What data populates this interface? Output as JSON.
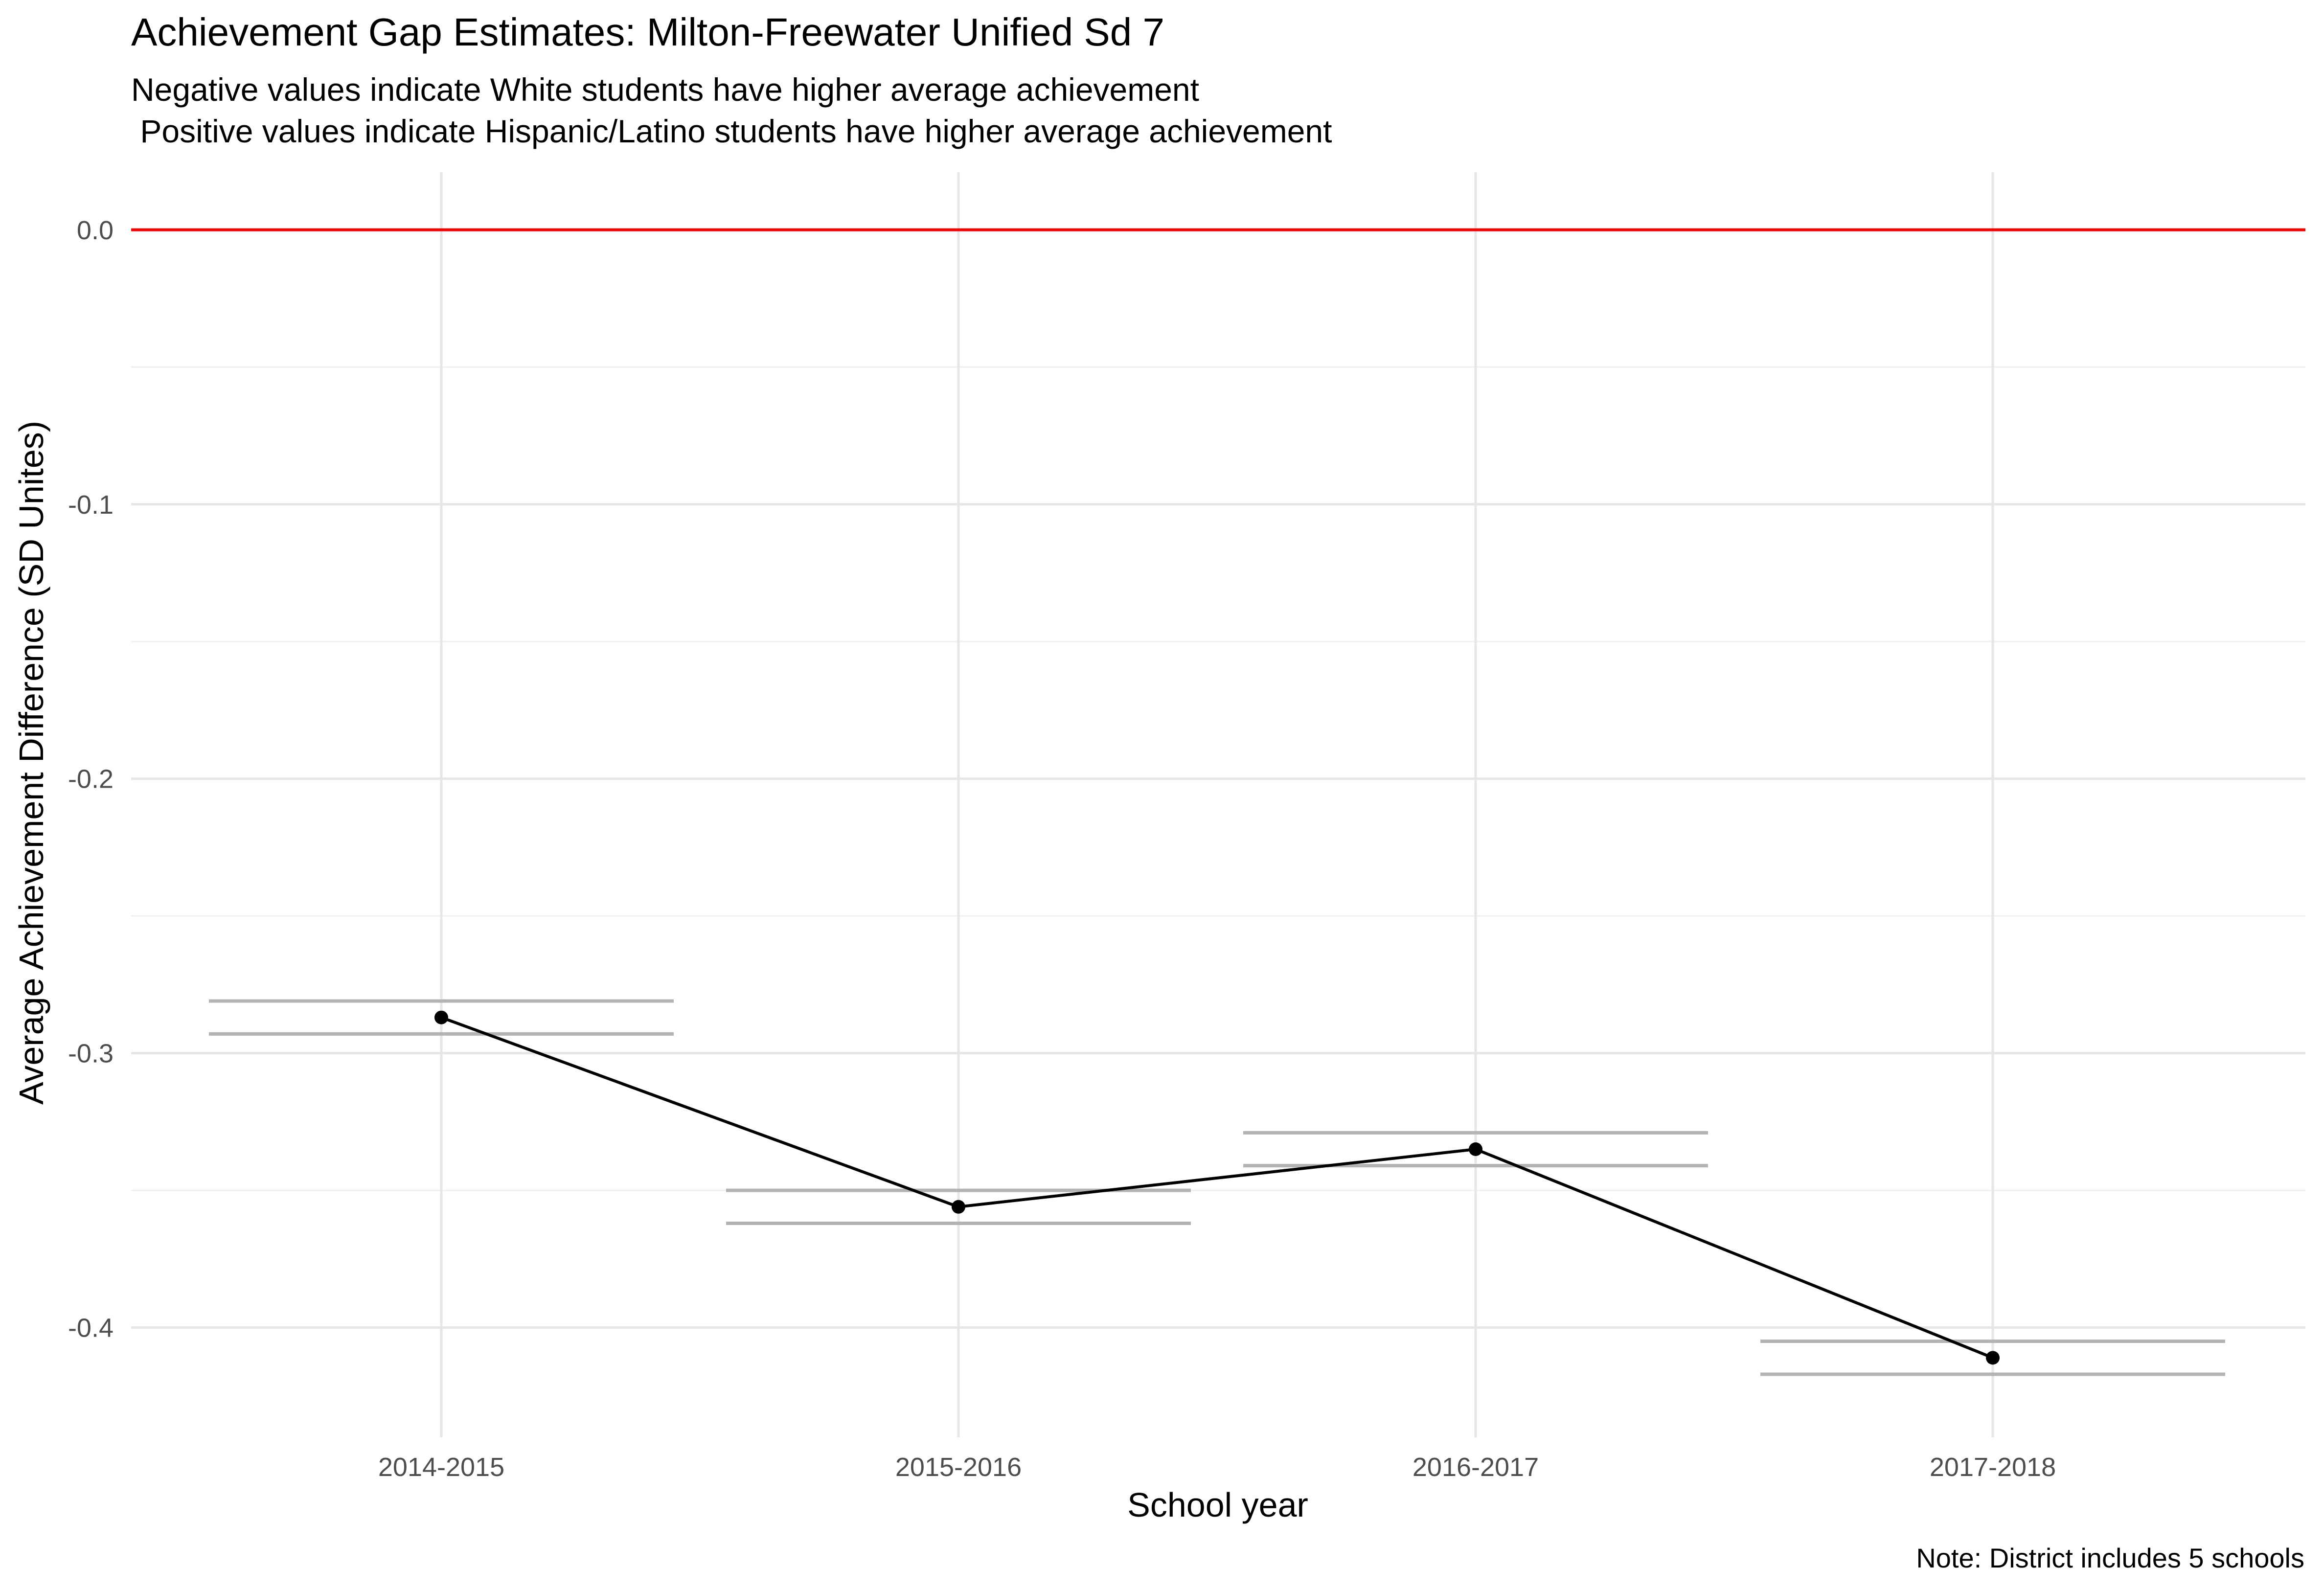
{
  "chart_data": {
    "type": "line",
    "title": "Achievement Gap Estimates: Milton-Freewater Unified Sd 7",
    "subtitle": [
      "Negative values indicate White students have higher average achievement",
      " Positive values indicate Hispanic/Latino students have higher average achievement"
    ],
    "xlabel": "School year",
    "ylabel": "Average Achievement Difference (SD Unites)",
    "caption": "Note: District includes 5 schools",
    "categories": [
      "2014-2015",
      "2015-2016",
      "2016-2017",
      "2017-2018"
    ],
    "values": [
      -0.287,
      -0.356,
      -0.335,
      -0.411
    ],
    "interval_upper": [
      -0.281,
      -0.35,
      -0.329,
      -0.405
    ],
    "interval_lower": [
      -0.293,
      -0.362,
      -0.341,
      -0.417
    ],
    "yticks": [
      0.0,
      -0.1,
      -0.2,
      -0.3,
      -0.4
    ],
    "ytick_labels": [
      "0.0",
      "-0.1",
      "-0.2",
      "-0.3",
      "-0.4"
    ],
    "ylim": [
      -0.44,
      0.021
    ],
    "reference_line": 0.0,
    "grid": true,
    "colors": {
      "line": "#000000",
      "reference": "#ff0000",
      "interval": "#b3b3b3",
      "grid_major": "#e6e6e6",
      "grid_minor": "#f0f0f0",
      "text": "#000000",
      "tick_text": "#4d4d4d"
    }
  }
}
